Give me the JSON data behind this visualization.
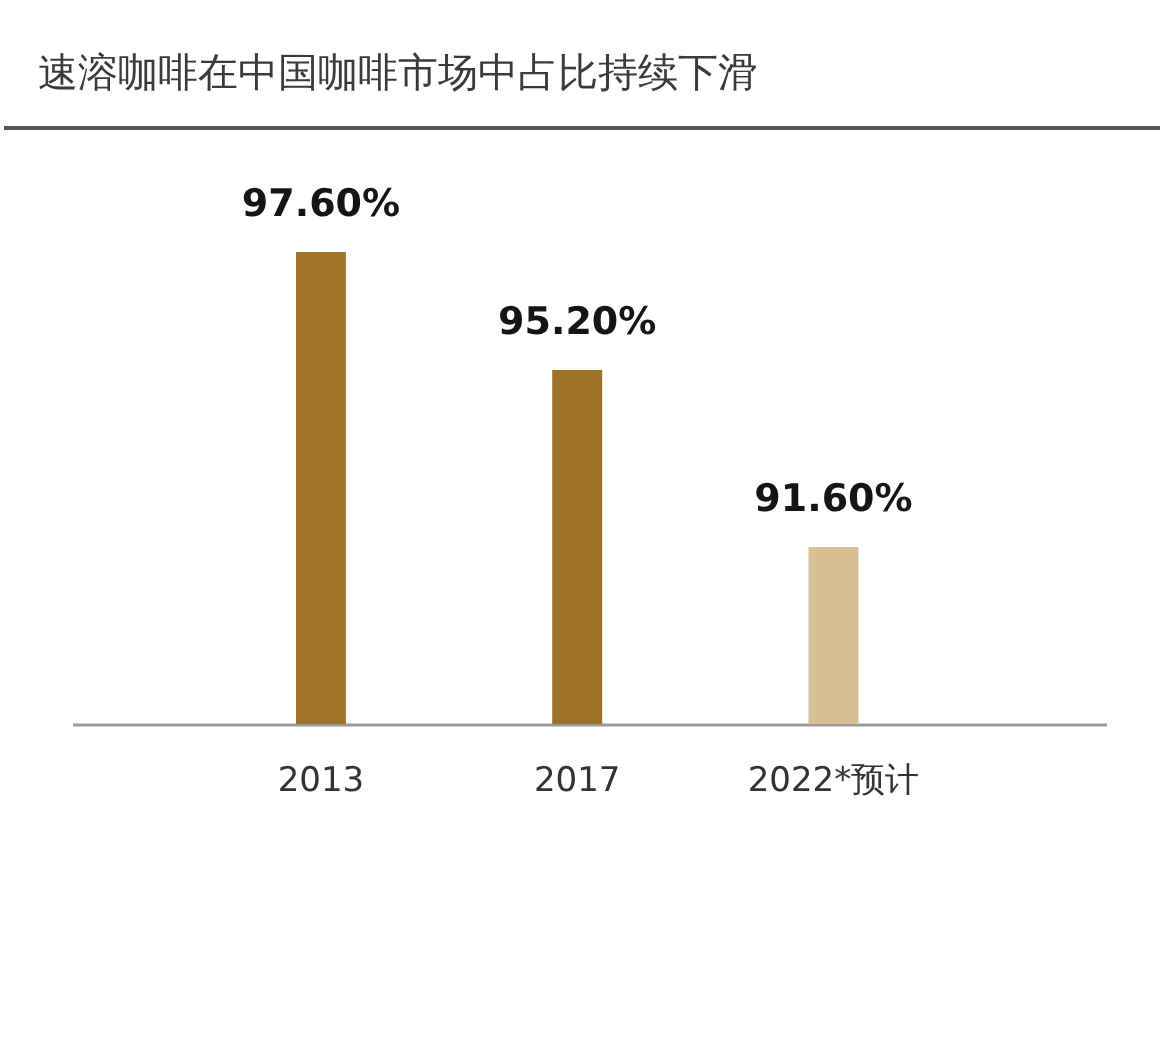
{
  "chart_data": {
    "type": "bar",
    "title": "速溶咖啡在中国咖啡市场中占比持续下滑",
    "categories": [
      "2013",
      "2017",
      "2022*预计"
    ],
    "values": [
      97.6,
      95.2,
      91.6
    ],
    "colors": [
      "#a0732a",
      "#9e7129",
      "#d8c095"
    ],
    "value_labels": [
      "97.60%",
      "95.20%",
      "91.60%"
    ],
    "ylim": [
      88,
      100
    ],
    "tick_labels": "x"
  }
}
